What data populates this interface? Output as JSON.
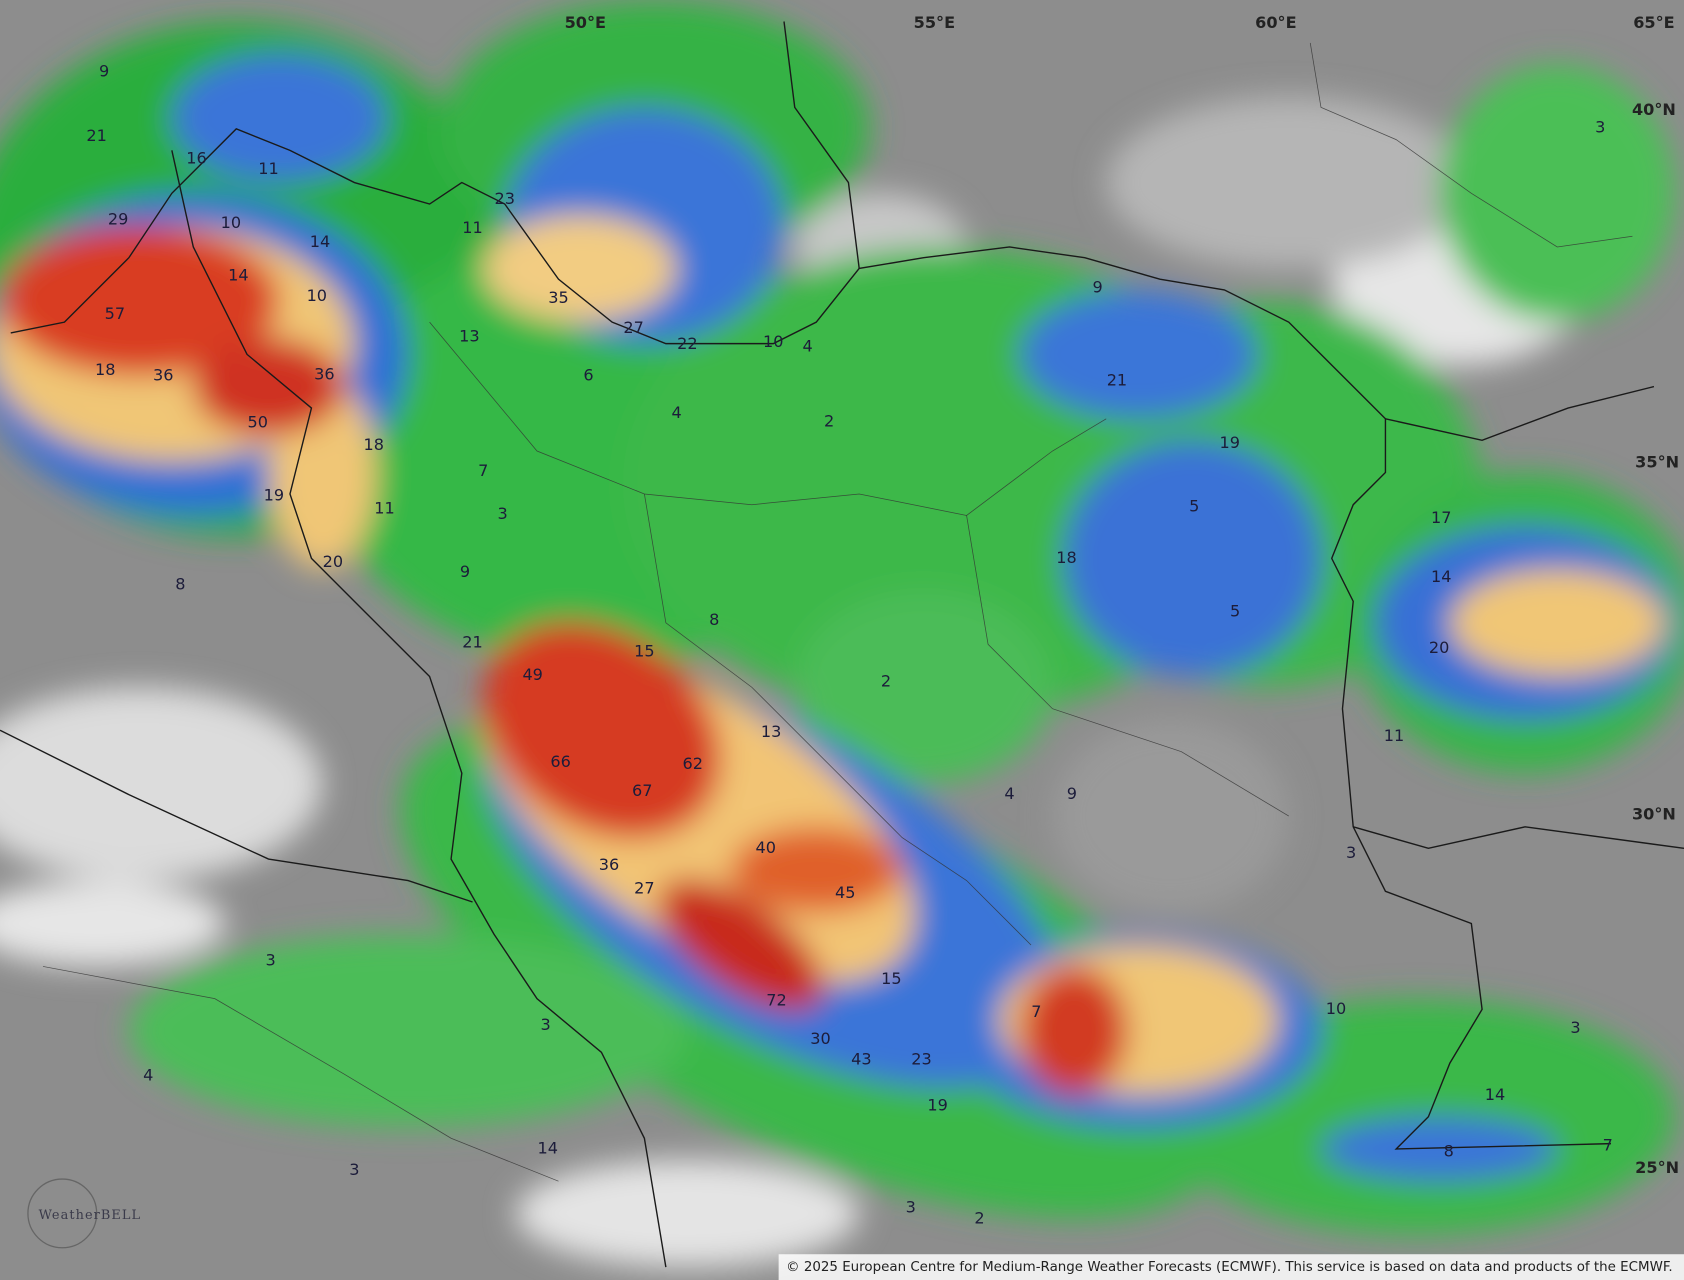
{
  "map": {
    "lon_labels": [
      "50°E",
      "55°E",
      "60°E",
      "65°E"
    ],
    "lat_labels": [
      "40°N",
      "35°N",
      "30°N",
      "25°N"
    ],
    "precip_labels": [
      9,
      21,
      16,
      11,
      29,
      10,
      14,
      14,
      10,
      57,
      18,
      36,
      36,
      50,
      18,
      19,
      11,
      20,
      8,
      13,
      11,
      23,
      35,
      27,
      22,
      10,
      4,
      6,
      4,
      7,
      3,
      9,
      2,
      9,
      21,
      19,
      5,
      18,
      5,
      17,
      14,
      20,
      11,
      8,
      21,
      15,
      49,
      2,
      66,
      62,
      67,
      13,
      4,
      9,
      40,
      36,
      27,
      45,
      15,
      72,
      30,
      43,
      23,
      7,
      10,
      3,
      19,
      14,
      3,
      3,
      3,
      3,
      4,
      14,
      3,
      3,
      2,
      8,
      7
    ],
    "copyright": "© 2025 European Centre for Medium-Range Weather Forecasts (ECMWF). This service is based on data and products of the ECMWF.",
    "logo": "WeatherBELL"
  }
}
